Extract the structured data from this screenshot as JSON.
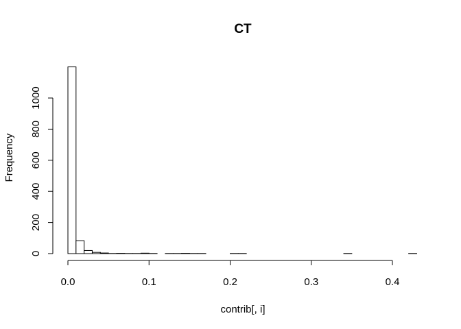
{
  "chart_data": {
    "type": "bar",
    "title": "CT",
    "xlabel": "contrib[, i]",
    "ylabel": "Frequency",
    "x_ticks": [
      "0.0",
      "0.1",
      "0.2",
      "0.3",
      "0.4"
    ],
    "x_tick_values": [
      0.0,
      0.1,
      0.2,
      0.3,
      0.4
    ],
    "y_ticks": [
      "0",
      "200",
      "400",
      "600",
      "800",
      "1000"
    ],
    "y_tick_values": [
      0,
      200,
      400,
      600,
      800,
      1000
    ],
    "xlim": [
      0.0,
      0.43
    ],
    "ylim": [
      0,
      1200
    ],
    "bin_width": 0.01,
    "bin_start": 0.0,
    "values": [
      1200,
      83,
      20,
      8,
      4,
      1,
      2,
      1,
      1,
      3,
      1,
      0,
      1,
      1,
      2,
      1,
      1,
      0,
      0,
      0,
      1,
      1,
      0,
      0,
      0,
      0,
      0,
      0,
      0,
      0,
      0,
      0,
      0,
      0,
      1,
      0,
      0,
      0,
      0,
      0,
      0,
      0,
      1
    ],
    "grid": false,
    "bar_fill": "#ffffff",
    "bar_stroke": "#000000"
  }
}
